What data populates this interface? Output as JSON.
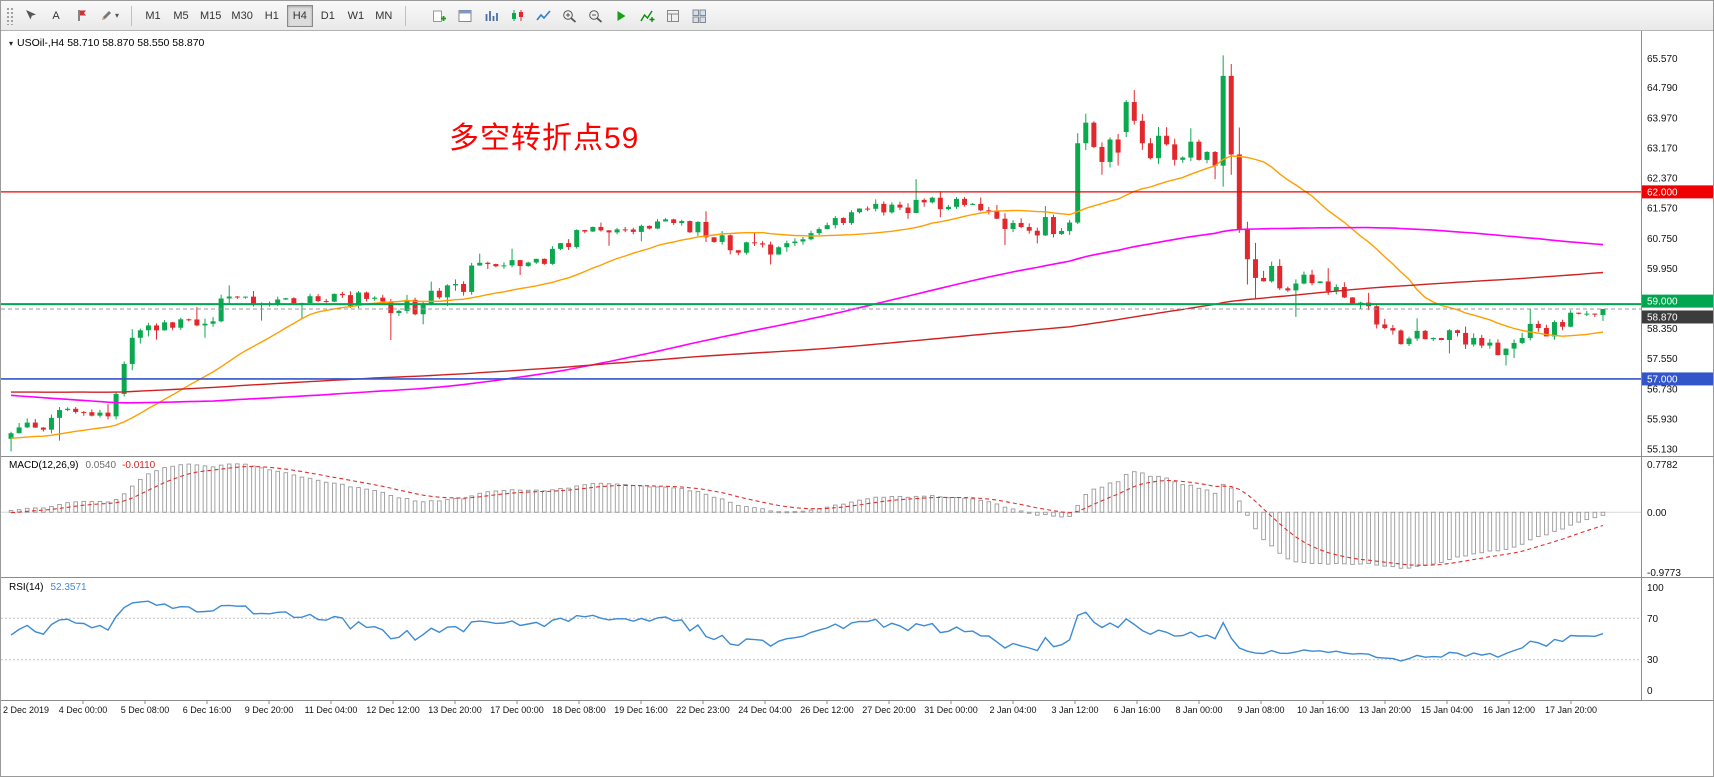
{
  "toolbar": {
    "tools": {
      "text_label": "A"
    },
    "timeframes": [
      "M1",
      "M5",
      "M15",
      "M30",
      "H1",
      "H4",
      "D1",
      "W1",
      "MN"
    ],
    "active_timeframe": "H4",
    "right_icons": [
      "new-order-icon",
      "chart-window-icon",
      "chart-bars-icon",
      "chart-candles-icon",
      "chart-line-icon",
      "zoom-in-icon",
      "zoom-out-icon",
      "auto-trading-icon",
      "indicators-icon",
      "templates-icon",
      "tile-windows-icon"
    ]
  },
  "chart": {
    "title": "USOil-,H4  58.710 58.870 58.550 58.870",
    "symbol": "USOil-",
    "period": "H4",
    "annotation": {
      "text": "多空转折点59",
      "color": "#ff0000"
    }
  },
  "macd": {
    "label": "MACD(12,26,9)",
    "value_main": "0.0540",
    "value_signal": "-0.0110",
    "axis": [
      "0.7782",
      "0.00",
      "-0.9773"
    ]
  },
  "rsi": {
    "label": "RSI(14)",
    "value": "52.3571",
    "axis": [
      "100",
      "70",
      "30",
      "0"
    ]
  },
  "chart_data": {
    "type": "candlestick",
    "symbol": "USOil-",
    "timeframe": "H4",
    "price_range": [
      54.94,
      66.3
    ],
    "price_axis_labels": [
      "65.570",
      "64.790",
      "63.970",
      "63.170",
      "62.370",
      "61.570",
      "60.750",
      "59.950",
      "59.150",
      "58.350",
      "57.550",
      "56.730",
      "55.930",
      "55.130"
    ],
    "time_axis_labels": [
      "2 Dec 2019",
      "4 Dec 00:00",
      "5 Dec 08:00",
      "6 Dec 16:00",
      "9 Dec 20:00",
      "11 Dec 04:00",
      "12 Dec 12:00",
      "13 Dec 20:00",
      "17 Dec 00:00",
      "18 Dec 08:00",
      "19 Dec 16:00",
      "22 Dec 23:00",
      "24 Dec 04:00",
      "26 Dec 12:00",
      "27 Dec 20:00",
      "31 Dec 00:00",
      "2 Jan 04:00",
      "3 Jan 12:00",
      "6 Jan 16:00",
      "8 Jan 00:00",
      "9 Jan 08:00",
      "10 Jan 16:00",
      "13 Jan 20:00",
      "15 Jan 04:00",
      "16 Jan 12:00",
      "17 Jan 20:00"
    ],
    "horizontal_lines": [
      {
        "price": 62.0,
        "label": "62.000",
        "color": "#f00000",
        "width": 1.3
      },
      {
        "price": 59.0,
        "label": "59.000",
        "color": "#00a650",
        "width": 2
      },
      {
        "price": 57.0,
        "label": "57.000",
        "color": "#3355cc",
        "width": 1.6
      }
    ],
    "current_price": {
      "value": 58.87,
      "label": "58.870"
    },
    "current_bar": {
      "open": 58.71,
      "high": 58.87,
      "low": 58.55,
      "close": 58.87
    },
    "bars_per_day": 6,
    "daily_ohlc": [
      {
        "date": "2 Dec",
        "open": 55.4,
        "high": 56.05,
        "low": 55.06,
        "close": 55.96
      },
      {
        "date": "3 Dec",
        "open": 55.96,
        "high": 56.25,
        "low": 55.35,
        "close": 56.1
      },
      {
        "date": "4 Dec",
        "open": 56.1,
        "high": 58.5,
        "low": 55.92,
        "close": 58.43,
        "path": [
          56.1,
          56.0,
          56.6,
          57.4,
          58.1,
          58.3,
          58.43
        ]
      },
      {
        "date": "5 Dec",
        "open": 58.43,
        "high": 58.92,
        "low": 58.05,
        "close": 58.43
      },
      {
        "date": "6 Dec",
        "open": 58.43,
        "high": 59.5,
        "low": 58.1,
        "close": 59.2
      },
      {
        "date": "9 Dec",
        "open": 59.2,
        "high": 59.35,
        "low": 58.56,
        "close": 59.02
      },
      {
        "date": "10 Dec",
        "open": 59.02,
        "high": 59.33,
        "low": 58.6,
        "close": 59.24
      },
      {
        "date": "11 Dec",
        "open": 59.24,
        "high": 59.35,
        "low": 58.04,
        "close": 58.76
      },
      {
        "date": "12 Dec",
        "open": 58.76,
        "high": 59.6,
        "low": 58.46,
        "close": 59.18
      },
      {
        "date": "13 Dec",
        "open": 59.18,
        "high": 60.35,
        "low": 58.95,
        "close": 60.07
      },
      {
        "date": "16 Dec",
        "open": 60.07,
        "high": 60.48,
        "low": 59.78,
        "close": 60.21
      },
      {
        "date": "17 Dec",
        "open": 60.21,
        "high": 61.0,
        "low": 60.05,
        "close": 60.94
      },
      {
        "date": "18 Dec",
        "open": 60.94,
        "high": 61.18,
        "low": 60.56,
        "close": 60.93
      },
      {
        "date": "19 Dec",
        "open": 60.93,
        "high": 61.3,
        "low": 60.68,
        "close": 61.22
      },
      {
        "date": "20 Dec",
        "open": 61.22,
        "high": 61.48,
        "low": 60.33,
        "close": 60.44
      },
      {
        "date": "23 Dec",
        "open": 60.44,
        "high": 60.92,
        "low": 60.06,
        "close": 60.52
      },
      {
        "date": "24 Dec",
        "open": 60.52,
        "high": 61.18,
        "low": 60.4,
        "close": 61.11
      },
      {
        "date": "26 Dec",
        "open": 61.11,
        "high": 61.8,
        "low": 61.02,
        "close": 61.68
      },
      {
        "date": "27 Dec",
        "open": 61.68,
        "high": 62.34,
        "low": 61.28,
        "close": 61.72
      },
      {
        "date": "30 Dec",
        "open": 61.72,
        "high": 62.02,
        "low": 61.32,
        "close": 61.68
      },
      {
        "date": "31 Dec",
        "open": 61.68,
        "high": 61.85,
        "low": 60.58,
        "close": 61.06
      },
      {
        "date": "2 Jan",
        "open": 61.06,
        "high": 61.62,
        "low": 60.62,
        "close": 61.18
      },
      {
        "date": "3 Jan",
        "open": 61.18,
        "high": 64.09,
        "low": 61.14,
        "close": 63.05,
        "path": [
          61.18,
          63.3,
          63.85,
          63.2,
          62.8,
          63.4,
          63.05
        ]
      },
      {
        "date": "6 Jan",
        "open": 63.6,
        "high": 64.72,
        "low": 62.75,
        "close": 63.27,
        "path": [
          63.6,
          64.4,
          63.9,
          63.3,
          62.9,
          63.5,
          63.27
        ]
      },
      {
        "date": "7 Jan",
        "open": 63.27,
        "high": 63.7,
        "low": 62.34,
        "close": 62.7
      },
      {
        "date": "8 Jan",
        "open": 62.7,
        "high": 65.65,
        "low": 59.15,
        "close": 59.61,
        "path": [
          62.7,
          65.1,
          63.0,
          61.0,
          60.2,
          59.7,
          59.61
        ]
      },
      {
        "date": "9 Jan",
        "open": 59.61,
        "high": 60.2,
        "low": 58.66,
        "close": 59.56
      },
      {
        "date": "10 Jan",
        "open": 59.56,
        "high": 59.96,
        "low": 58.88,
        "close": 59.04
      },
      {
        "date": "13 Jan",
        "open": 59.04,
        "high": 59.3,
        "low": 57.88,
        "close": 58.08
      },
      {
        "date": "14 Jan",
        "open": 58.08,
        "high": 58.62,
        "low": 57.68,
        "close": 58.23
      },
      {
        "date": "15 Jan",
        "open": 58.23,
        "high": 58.4,
        "low": 57.36,
        "close": 57.81
      },
      {
        "date": "16 Jan",
        "open": 57.81,
        "high": 58.86,
        "low": 57.56,
        "close": 58.52
      },
      {
        "date": "17 Jan",
        "open": 58.52,
        "high": 58.98,
        "low": 58.3,
        "close": 58.87
      }
    ],
    "moving_averages": [
      {
        "period": 24,
        "type": "sma",
        "color": "#ff9e00"
      },
      {
        "period": 120,
        "type": "sma",
        "color": "#ff00ff"
      },
      {
        "period": 200,
        "type": "sma",
        "color": "#d02020"
      }
    ],
    "prehistory_anchors": [
      55.8,
      56.3,
      57.3,
      58.0,
      57.3,
      55.2,
      55.5
    ],
    "indicators": {
      "macd": {
        "fast": 12,
        "slow": 26,
        "signal": 9,
        "range": [
          -1.05,
          0.88
        ]
      },
      "rsi": {
        "period": 14,
        "range": [
          0,
          100
        ],
        "levels": [
          30,
          70
        ]
      }
    },
    "colors": {
      "up": "#0ca850",
      "down": "#e2272d",
      "macd_hist": "#9a9a9a",
      "macd_signal": "#e03030",
      "rsi": "#3d8bd4"
    }
  }
}
